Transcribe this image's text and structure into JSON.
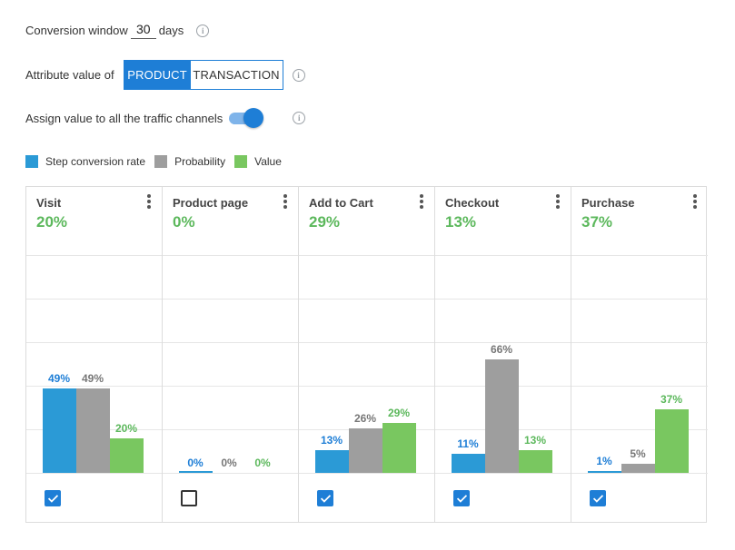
{
  "conversion_window": {
    "label": "Conversion window",
    "value": "30",
    "unit": "days",
    "info_icon": "info-icon"
  },
  "attribute": {
    "label": "Attribute value of",
    "options": [
      "PRODUCT",
      "TRANSACTION"
    ],
    "selected": "PRODUCT",
    "info_icon": "info-icon"
  },
  "assign": {
    "label": "Assign value to all the traffic channels",
    "enabled": true,
    "info_icon": "info-icon"
  },
  "legend": [
    {
      "label": "Step conversion rate",
      "color": "#2b9ad6"
    },
    {
      "label": "Probability",
      "color": "#9e9e9e"
    },
    {
      "label": "Value",
      "color": "#79c760"
    }
  ],
  "colors": {
    "accent": "#1e7ed6",
    "rate_label": "#1e7ed6",
    "probability_label": "#777777",
    "value_label": "#5cb85c"
  },
  "chart_data": {
    "type": "bar",
    "categories": [
      "Visit",
      "Product page",
      "Add to Cart",
      "Checkout",
      "Purchase"
    ],
    "series": [
      {
        "name": "Step conversion rate",
        "values": [
          49,
          0,
          13,
          11,
          1
        ],
        "labels": [
          "49%",
          "0%",
          "13%",
          "11%",
          "1%"
        ]
      },
      {
        "name": "Probability",
        "values": [
          49,
          0,
          26,
          66,
          5
        ],
        "labels": [
          "49%",
          "0%",
          "26%",
          "66%",
          "5%"
        ]
      },
      {
        "name": "Value",
        "values": [
          20,
          0,
          29,
          13,
          37
        ],
        "labels": [
          "20%",
          "0%",
          "29%",
          "13%",
          "37%"
        ]
      }
    ],
    "ylim": [
      0,
      100
    ],
    "grid": true,
    "legend_position": "top-left"
  },
  "stages": [
    {
      "title": "Visit",
      "value": "20%",
      "checked": true
    },
    {
      "title": "Product page",
      "value": "0%",
      "checked": false
    },
    {
      "title": "Add to Cart",
      "value": "29%",
      "checked": true
    },
    {
      "title": "Checkout",
      "value": "13%",
      "checked": true
    },
    {
      "title": "Purchase",
      "value": "37%",
      "checked": true
    }
  ]
}
